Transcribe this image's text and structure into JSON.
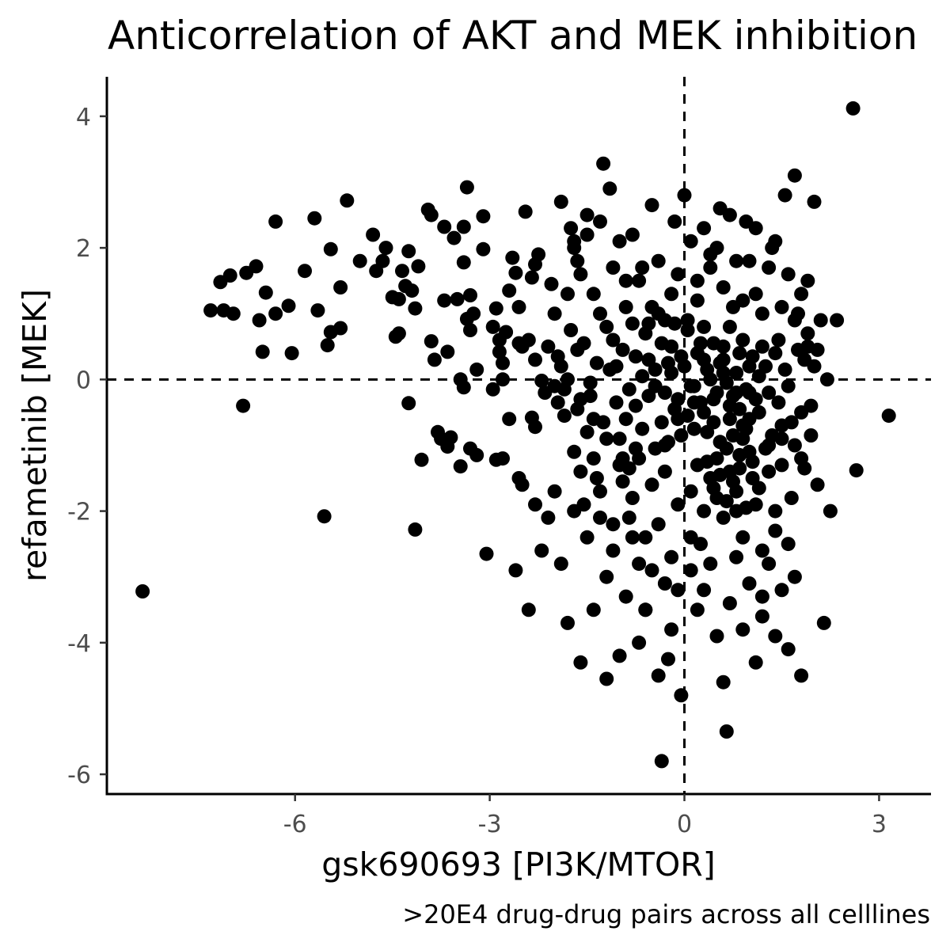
{
  "chart_data": {
    "type": "scatter",
    "title": "Anticorrelation of AKT and MEK inhibition",
    "xlabel": "gsk690693 [PI3K/MTOR]",
    "ylabel": "refametinib [MEK]",
    "caption": ">20E4 drug-drug pairs across all celllines",
    "xlim": [
      -8.9,
      3.8
    ],
    "ylim": [
      -6.3,
      4.6
    ],
    "xticks": [
      -6,
      -3,
      0,
      3
    ],
    "yticks": [
      -6,
      -4,
      -2,
      0,
      2,
      4
    ],
    "reference_lines": {
      "x": 0,
      "y": 0,
      "style": "dashed"
    },
    "grid": false,
    "legend": "none",
    "point_color": "#000000",
    "points": [
      [
        -8.35,
        -3.22
      ],
      [
        -7.3,
        1.05
      ],
      [
        -7.1,
        1.05
      ],
      [
        -7.15,
        1.48
      ],
      [
        -7.0,
        1.58
      ],
      [
        -6.95,
        1.0
      ],
      [
        -6.8,
        -0.4
      ],
      [
        -6.75,
        1.62
      ],
      [
        -6.6,
        1.72
      ],
      [
        -6.55,
        0.9
      ],
      [
        -6.5,
        0.42
      ],
      [
        -6.45,
        1.32
      ],
      [
        -6.3,
        2.4
      ],
      [
        -6.3,
        1.0
      ],
      [
        -6.1,
        1.12
      ],
      [
        -6.05,
        0.4
      ],
      [
        -5.85,
        1.65
      ],
      [
        -5.7,
        2.45
      ],
      [
        -5.65,
        1.05
      ],
      [
        -5.55,
        -2.08
      ],
      [
        -5.5,
        0.52
      ],
      [
        -5.45,
        1.98
      ],
      [
        -5.45,
        0.72
      ],
      [
        -5.3,
        0.78
      ],
      [
        -5.3,
        1.4
      ],
      [
        -5.2,
        2.72
      ],
      [
        -5.0,
        1.8
      ],
      [
        -4.8,
        2.2
      ],
      [
        -4.75,
        1.65
      ],
      [
        -4.65,
        1.8
      ],
      [
        -4.6,
        2.0
      ],
      [
        -4.5,
        1.25
      ],
      [
        -4.45,
        0.65
      ],
      [
        -4.4,
        0.7
      ],
      [
        -4.4,
        1.22
      ],
      [
        -4.35,
        1.65
      ],
      [
        -4.3,
        1.42
      ],
      [
        -4.2,
        1.35
      ],
      [
        -4.25,
        1.95
      ],
      [
        -4.25,
        -0.36
      ],
      [
        -4.15,
        1.08
      ],
      [
        -4.1,
        1.72
      ],
      [
        -4.15,
        -2.28
      ],
      [
        -4.05,
        -1.22
      ],
      [
        -3.95,
        2.58
      ],
      [
        -3.9,
        2.5
      ],
      [
        -3.9,
        0.58
      ],
      [
        -3.85,
        0.3
      ],
      [
        -3.8,
        -0.8
      ],
      [
        -3.75,
        -0.9
      ],
      [
        -3.7,
        1.2
      ],
      [
        -3.7,
        2.32
      ],
      [
        -3.65,
        -1.02
      ],
      [
        -3.65,
        0.42
      ],
      [
        -3.6,
        -0.88
      ],
      [
        -3.55,
        2.15
      ],
      [
        -3.5,
        1.22
      ],
      [
        -3.45,
        0.0
      ],
      [
        -3.45,
        -1.32
      ],
      [
        -3.4,
        2.32
      ],
      [
        -3.4,
        1.78
      ],
      [
        -3.4,
        -0.12
      ],
      [
        -3.35,
        2.92
      ],
      [
        -3.35,
        0.92
      ],
      [
        -3.3,
        1.28
      ],
      [
        -3.3,
        0.75
      ],
      [
        -3.3,
        -1.05
      ],
      [
        -3.25,
        1.0
      ],
      [
        -3.2,
        0.15
      ],
      [
        -3.2,
        -1.15
      ],
      [
        -3.1,
        2.48
      ],
      [
        -3.1,
        1.98
      ],
      [
        -3.05,
        -2.65
      ],
      [
        -2.95,
        0.8
      ],
      [
        -2.95,
        -0.15
      ],
      [
        -2.9,
        -1.22
      ],
      [
        -2.9,
        1.08
      ],
      [
        -2.85,
        0.6
      ],
      [
        -2.85,
        0.42
      ],
      [
        -2.8,
        0.25
      ],
      [
        -2.8,
        0.0
      ],
      [
        -2.75,
        0.72
      ],
      [
        -2.7,
        1.35
      ],
      [
        -2.65,
        1.85
      ],
      [
        -2.6,
        1.62
      ],
      [
        -2.55,
        0.55
      ],
      [
        -2.55,
        -1.5
      ],
      [
        -2.55,
        1.1
      ],
      [
        -2.5,
        0.5
      ],
      [
        -2.45,
        2.55
      ],
      [
        -2.4,
        0.6
      ],
      [
        -2.35,
        1.55
      ],
      [
        -2.35,
        -0.58
      ],
      [
        -2.3,
        -0.72
      ],
      [
        -2.3,
        0.3
      ],
      [
        -2.3,
        1.75
      ],
      [
        -2.25,
        1.9
      ],
      [
        -2.2,
        -0.02
      ],
      [
        -2.15,
        -0.2
      ],
      [
        -2.1,
        0.5
      ],
      [
        -2.05,
        1.45
      ],
      [
        -2.0,
        -0.1
      ],
      [
        -1.95,
        -0.35
      ],
      [
        -1.9,
        0.2
      ],
      [
        -1.85,
        -0.55
      ],
      [
        -1.8,
        0.0
      ],
      [
        -1.75,
        2.3
      ],
      [
        -1.7,
        2.0
      ],
      [
        -1.65,
        1.8
      ],
      [
        -1.65,
        0.45
      ],
      [
        -1.6,
        -0.3
      ],
      [
        -1.55,
        -1.9
      ],
      [
        -1.5,
        2.2
      ],
      [
        -1.45,
        -0.05
      ],
      [
        -1.4,
        -0.6
      ],
      [
        -1.35,
        -1.5
      ],
      [
        -1.3,
        1.0
      ],
      [
        -1.25,
        3.28
      ],
      [
        -1.2,
        -4.55
      ],
      [
        -1.15,
        2.9
      ],
      [
        -1.1,
        0.6
      ],
      [
        -1.05,
        0.2
      ],
      [
        -1.0,
        -0.9
      ],
      [
        -0.95,
        -1.2
      ],
      [
        -0.9,
        1.5
      ],
      [
        -0.85,
        -2.1
      ],
      [
        -0.8,
        0.85
      ],
      [
        -0.75,
        -0.4
      ],
      [
        -0.7,
        -2.8
      ],
      [
        -0.65,
        1.7
      ],
      [
        -0.6,
        -3.5
      ],
      [
        -0.55,
        0.3
      ],
      [
        -0.5,
        2.65
      ],
      [
        -0.45,
        -0.1
      ],
      [
        -0.4,
        1.0
      ],
      [
        -0.35,
        -5.8
      ],
      [
        -0.3,
        -1.0
      ],
      [
        -0.25,
        -4.25
      ],
      [
        -0.2,
        0.5
      ],
      [
        -0.15,
        2.4
      ],
      [
        -0.1,
        -0.6
      ],
      [
        -0.05,
        -4.8
      ],
      [
        0.0,
        2.8
      ],
      [
        0.05,
        0.9
      ],
      [
        0.1,
        -1.7
      ],
      [
        0.15,
        -0.1
      ],
      [
        0.2,
        1.2
      ],
      [
        0.25,
        -2.5
      ],
      [
        0.3,
        0.3
      ],
      [
        0.35,
        -0.8
      ],
      [
        0.4,
        1.9
      ],
      [
        0.45,
        -0.3
      ],
      [
        0.5,
        -1.2
      ],
      [
        0.55,
        2.6
      ],
      [
        0.6,
        0.1
      ],
      [
        0.65,
        -5.35
      ],
      [
        0.7,
        -0.6
      ],
      [
        0.75,
        1.1
      ],
      [
        0.8,
        -2.0
      ],
      [
        0.85,
        0.4
      ],
      [
        0.9,
        -0.9
      ],
      [
        0.95,
        2.4
      ],
      [
        1.0,
        -0.2
      ],
      [
        1.05,
        -1.5
      ],
      [
        1.1,
        1.3
      ],
      [
        1.15,
        -0.5
      ],
      [
        1.2,
        -3.6
      ],
      [
        1.25,
        0.2
      ],
      [
        1.3,
        -1.0
      ],
      [
        1.35,
        2.0
      ],
      [
        1.4,
        -2.3
      ],
      [
        1.45,
        0.6
      ],
      [
        1.5,
        -0.7
      ],
      [
        1.55,
        2.8
      ],
      [
        1.6,
        -0.1
      ],
      [
        1.65,
        -1.8
      ],
      [
        1.7,
        3.1
      ],
      [
        1.75,
        1.0
      ],
      [
        1.8,
        -1.2
      ],
      [
        1.85,
        0.3
      ],
      [
        1.9,
        1.5
      ],
      [
        1.95,
        -0.4
      ],
      [
        2.0,
        2.7
      ],
      [
        2.05,
        -1.6
      ],
      [
        2.1,
        0.9
      ],
      [
        2.15,
        -3.7
      ],
      [
        2.2,
        0.0
      ],
      [
        2.25,
        -2.0
      ],
      [
        2.35,
        0.9
      ],
      [
        2.6,
        4.12
      ],
      [
        2.65,
        -1.38
      ],
      [
        3.15,
        -0.55
      ],
      [
        -0.3,
        -0.2
      ],
      [
        -0.2,
        0.1
      ],
      [
        -0.1,
        -0.3
      ],
      [
        0.0,
        0.2
      ],
      [
        0.1,
        -0.1
      ],
      [
        0.2,
        0.4
      ],
      [
        0.3,
        -0.5
      ],
      [
        0.4,
        0.0
      ],
      [
        0.5,
        -0.2
      ],
      [
        0.6,
        0.3
      ],
      [
        0.7,
        -0.4
      ],
      [
        0.8,
        0.1
      ],
      [
        0.9,
        -0.7
      ],
      [
        1.0,
        0.2
      ],
      [
        1.1,
        -0.3
      ],
      [
        0.35,
        0.15
      ],
      [
        0.45,
        -0.65
      ],
      [
        0.55,
        -0.95
      ],
      [
        0.65,
        -1.05
      ],
      [
        0.75,
        -0.85
      ],
      [
        0.85,
        -1.15
      ],
      [
        0.95,
        -0.75
      ],
      [
        0.25,
        -0.35
      ],
      [
        0.15,
        -0.75
      ],
      [
        0.05,
        -0.55
      ],
      [
        -0.05,
        -0.85
      ],
      [
        -0.15,
        -0.45
      ],
      [
        -0.25,
        -0.95
      ],
      [
        -0.35,
        -0.65
      ],
      [
        -0.45,
        -1.05
      ],
      [
        -0.55,
        -0.25
      ],
      [
        -0.65,
        0.05
      ],
      [
        -0.75,
        0.35
      ],
      [
        -0.85,
        -0.15
      ],
      [
        -0.95,
        0.45
      ],
      [
        -1.05,
        -0.35
      ],
      [
        -1.15,
        0.15
      ],
      [
        -1.25,
        -0.65
      ],
      [
        -1.35,
        0.25
      ],
      [
        -1.45,
        -0.25
      ],
      [
        -1.55,
        0.55
      ],
      [
        -1.65,
        -0.45
      ],
      [
        -1.75,
        0.75
      ],
      [
        -1.85,
        -0.15
      ],
      [
        -1.95,
        0.35
      ],
      [
        0.6,
        0.5
      ],
      [
        0.7,
        0.8
      ],
      [
        0.8,
        -0.2
      ],
      [
        0.9,
        0.6
      ],
      [
        1.0,
        -0.6
      ],
      [
        1.2,
        0.5
      ],
      [
        1.3,
        -0.2
      ],
      [
        1.4,
        0.4
      ],
      [
        1.5,
        -0.9
      ],
      [
        0.4,
        -1.5
      ],
      [
        0.5,
        -1.8
      ],
      [
        0.6,
        -2.1
      ],
      [
        0.7,
        -1.4
      ],
      [
        0.8,
        -1.7
      ],
      [
        0.9,
        -2.4
      ],
      [
        1.0,
        -1.1
      ],
      [
        1.1,
        -1.9
      ],
      [
        1.2,
        -2.6
      ],
      [
        1.3,
        -1.4
      ],
      [
        1.4,
        -2.0
      ],
      [
        1.5,
        -1.3
      ],
      [
        1.6,
        -2.5
      ],
      [
        1.7,
        -1.0
      ],
      [
        1.8,
        -0.5
      ],
      [
        1.9,
        0.7
      ],
      [
        0.2,
        -1.3
      ],
      [
        0.3,
        -2.0
      ],
      [
        0.1,
        -2.4
      ],
      [
        -0.1,
        -1.9
      ],
      [
        -0.2,
        -2.7
      ],
      [
        -0.3,
        -1.4
      ],
      [
        -0.4,
        -2.2
      ],
      [
        -0.5,
        -1.6
      ],
      [
        -0.6,
        -2.4
      ],
      [
        -0.7,
        -1.2
      ],
      [
        -0.8,
        -1.8
      ],
      [
        -0.9,
        -0.6
      ],
      [
        -1.0,
        -1.3
      ],
      [
        -1.1,
        -2.2
      ],
      [
        -1.2,
        -0.9
      ],
      [
        -1.3,
        -1.7
      ],
      [
        -1.4,
        -1.2
      ],
      [
        -1.5,
        -0.8
      ],
      [
        -1.6,
        -1.4
      ],
      [
        -1.7,
        -1.1
      ],
      [
        -0.1,
        1.6
      ],
      [
        -0.2,
        1.3
      ],
      [
        -0.3,
        0.9
      ],
      [
        -0.4,
        1.8
      ],
      [
        -0.5,
        1.1
      ],
      [
        -0.6,
        0.7
      ],
      [
        -0.7,
        1.5
      ],
      [
        -0.8,
        2.2
      ],
      [
        -0.9,
        1.1
      ],
      [
        -1.0,
        2.1
      ],
      [
        -1.1,
        1.7
      ],
      [
        -1.2,
        0.8
      ],
      [
        -1.3,
        2.4
      ],
      [
        -1.4,
        1.3
      ],
      [
        -1.5,
        2.5
      ],
      [
        -1.6,
        1.6
      ],
      [
        -1.7,
        2.1
      ],
      [
        -1.8,
        1.3
      ],
      [
        -1.9,
        2.7
      ],
      [
        -2.0,
        1.0
      ],
      [
        0.1,
        2.1
      ],
      [
        0.2,
        1.5
      ],
      [
        0.3,
        2.3
      ],
      [
        0.4,
        1.7
      ],
      [
        0.5,
        2.0
      ],
      [
        0.6,
        1.4
      ],
      [
        0.7,
        2.5
      ],
      [
        0.8,
        1.8
      ],
      [
        0.9,
        1.2
      ],
      [
        1.0,
        1.8
      ],
      [
        1.1,
        2.3
      ],
      [
        1.2,
        1.0
      ],
      [
        1.3,
        1.7
      ],
      [
        1.4,
        2.1
      ],
      [
        1.5,
        1.1
      ],
      [
        1.6,
        1.6
      ],
      [
        1.7,
        0.9
      ],
      [
        1.8,
        1.3
      ],
      [
        1.9,
        0.5
      ],
      [
        2.0,
        0.2
      ],
      [
        0.1,
        -2.9
      ],
      [
        0.2,
        -3.5
      ],
      [
        0.3,
        -3.2
      ],
      [
        0.4,
        -2.8
      ],
      [
        0.5,
        -3.9
      ],
      [
        0.6,
        -4.6
      ],
      [
        0.7,
        -3.4
      ],
      [
        0.8,
        -2.7
      ],
      [
        0.9,
        -3.8
      ],
      [
        1.0,
        -3.1
      ],
      [
        1.1,
        -4.3
      ],
      [
        1.2,
        -3.3
      ],
      [
        1.3,
        -2.8
      ],
      [
        1.4,
        -3.9
      ],
      [
        1.5,
        -3.2
      ],
      [
        1.6,
        -4.1
      ],
      [
        1.7,
        -3.0
      ],
      [
        1.8,
        -4.5
      ],
      [
        -0.1,
        -3.2
      ],
      [
        -0.2,
        -3.8
      ],
      [
        -0.3,
        -3.1
      ],
      [
        -0.4,
        -4.5
      ],
      [
        -0.5,
        -2.9
      ],
      [
        -0.6,
        -3.5
      ],
      [
        -0.7,
        -4.0
      ],
      [
        -0.8,
        -2.4
      ],
      [
        -0.9,
        -3.3
      ],
      [
        -1.0,
        -4.2
      ],
      [
        -1.1,
        -2.6
      ],
      [
        -1.2,
        -3.0
      ],
      [
        -1.3,
        -2.1
      ],
      [
        -1.4,
        -3.5
      ],
      [
        -1.5,
        -2.4
      ],
      [
        -1.6,
        -4.3
      ],
      [
        -1.7,
        -2.0
      ],
      [
        -1.8,
        -3.7
      ],
      [
        -1.9,
        -2.8
      ],
      [
        -2.0,
        -1.7
      ],
      [
        -2.1,
        -2.1
      ],
      [
        -2.2,
        -2.6
      ],
      [
        -2.3,
        -1.9
      ],
      [
        -2.4,
        -3.5
      ],
      [
        -2.5,
        -1.6
      ],
      [
        -2.6,
        -2.9
      ],
      [
        -2.7,
        -0.6
      ],
      [
        -2.8,
        -1.2
      ],
      [
        0.3,
        0.8
      ],
      [
        0.45,
        0.55
      ],
      [
        0.55,
        0.25
      ],
      [
        0.65,
        -0.05
      ],
      [
        0.75,
        -0.25
      ],
      [
        0.85,
        -0.45
      ],
      [
        0.95,
        -0.15
      ],
      [
        1.05,
        0.35
      ],
      [
        1.15,
        0.05
      ],
      [
        0.25,
        0.55
      ],
      [
        0.15,
        -0.35
      ],
      [
        0.05,
        0.75
      ],
      [
        -0.05,
        0.35
      ],
      [
        -0.15,
        0.85
      ],
      [
        -0.25,
        0.25
      ],
      [
        -0.35,
        0.55
      ],
      [
        -0.45,
        0.15
      ],
      [
        -0.55,
        0.85
      ],
      [
        -0.65,
        -0.75
      ],
      [
        -0.75,
        -1.05
      ],
      [
        -0.85,
        -1.35
      ],
      [
        -0.95,
        -1.55
      ],
      [
        0.35,
        -1.25
      ],
      [
        0.45,
        -1.65
      ],
      [
        0.55,
        -1.45
      ],
      [
        0.65,
        -1.85
      ],
      [
        0.75,
        -1.55
      ],
      [
        0.85,
        -1.35
      ],
      [
        0.95,
        -1.95
      ],
      [
        1.05,
        -1.25
      ],
      [
        1.15,
        -1.65
      ],
      [
        1.25,
        -1.05
      ],
      [
        1.35,
        -0.85
      ],
      [
        1.45,
        -0.35
      ],
      [
        1.55,
        0.15
      ],
      [
        1.65,
        -0.65
      ],
      [
        1.75,
        0.45
      ],
      [
        1.85,
        -1.35
      ],
      [
        1.95,
        -0.85
      ],
      [
        2.05,
        0.45
      ]
    ]
  }
}
